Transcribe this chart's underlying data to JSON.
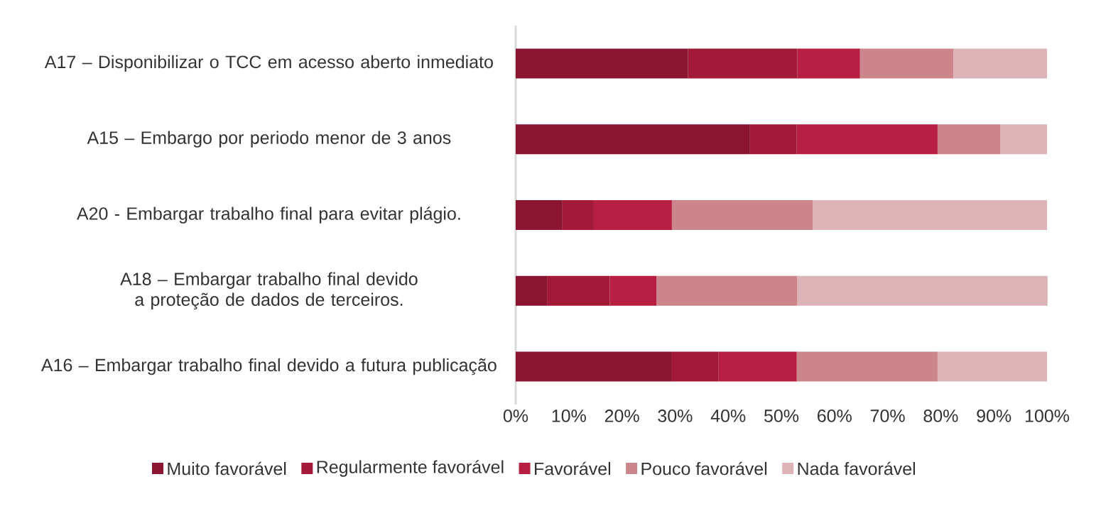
{
  "chart_data": {
    "type": "bar",
    "orientation": "horizontal",
    "stacked": true,
    "legend": "bottom",
    "categories": [
      "A17 – Disponibilizar o TCC em acesso aberto inmediato",
      "A15 – Embargo por periodo menor de 3 anos",
      "A20 - Embargar trabalho final para evitar plágio.",
      "A18 – Embargar trabalho final devido a proteção de dados de terceiros.",
      "A16 – Embargar trabalho final devido a futura publicação"
    ],
    "series": [
      {
        "name": "Muito favorável",
        "color": "#8b1530",
        "values": [
          32.4,
          44.1,
          8.8,
          5.9,
          29.4
        ]
      },
      {
        "name": "Regularmente favorável",
        "color": "#a31a38",
        "values": [
          20.6,
          8.8,
          5.9,
          11.8,
          8.8
        ]
      },
      {
        "name": "Favorável",
        "color": "#b71f42",
        "values": [
          11.8,
          26.5,
          14.7,
          8.8,
          14.7
        ]
      },
      {
        "name": "Pouco favorável",
        "color": "#cc858b",
        "values": [
          17.6,
          11.8,
          26.5,
          26.5,
          26.5
        ]
      },
      {
        "name": "Nada favorável",
        "color": "#dcb4b8",
        "values": [
          17.6,
          8.8,
          44.1,
          47.1,
          20.6
        ]
      }
    ],
    "xlim": [
      0,
      100
    ],
    "xticks": [
      {
        "value": 0,
        "label": "0%"
      },
      {
        "value": 10,
        "label": "10%"
      },
      {
        "value": 20,
        "label": "20%"
      },
      {
        "value": 30,
        "label": "30%"
      },
      {
        "value": 40,
        "label": "40%"
      },
      {
        "value": 50,
        "label": "50%"
      },
      {
        "value": 60,
        "label": "60%"
      },
      {
        "value": 70,
        "label": "70%"
      },
      {
        "value": 80,
        "label": "80%"
      },
      {
        "value": 90,
        "label": "90%"
      },
      {
        "value": 100,
        "label": "100%"
      }
    ]
  }
}
